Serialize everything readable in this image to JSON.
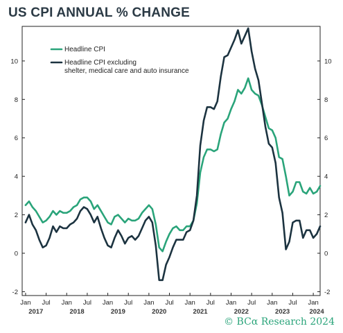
{
  "title": "US CPI ANNUAL % CHANGE",
  "copyright": "© BCα Research 2024",
  "colors": {
    "headline": "#2aa47a",
    "excluding": "#1c3340",
    "frame": "#222222"
  },
  "chart_data": {
    "type": "line",
    "title": "US CPI ANNUAL % CHANGE",
    "xlabel": "",
    "ylabel": "",
    "xlim": [
      "2016-12",
      "2024-03"
    ],
    "ylim": [
      -2.2,
      11.8
    ],
    "y_ticks": [
      -2,
      0,
      2,
      4,
      6,
      8,
      10
    ],
    "x_ticks": [
      {
        "date": "2017-01",
        "label": "Jan"
      },
      {
        "date": "2017-07",
        "label": "Jul"
      },
      {
        "date": "2018-01",
        "label": "Jan"
      },
      {
        "date": "2018-07",
        "label": "Jul"
      },
      {
        "date": "2019-01",
        "label": "Jan"
      },
      {
        "date": "2019-07",
        "label": "Jul"
      },
      {
        "date": "2020-01",
        "label": "Jan"
      },
      {
        "date": "2020-07",
        "label": "Jul"
      },
      {
        "date": "2021-01",
        "label": "Jan"
      },
      {
        "date": "2021-07",
        "label": "Jul"
      },
      {
        "date": "2022-01",
        "label": "Jan"
      },
      {
        "date": "2022-07",
        "label": "Jul"
      },
      {
        "date": "2023-01",
        "label": "Jan"
      },
      {
        "date": "2023-07",
        "label": "Jul"
      },
      {
        "date": "2024-01",
        "label": "Jan"
      }
    ],
    "year_labels": [
      {
        "date": "2017-04",
        "label": "2017"
      },
      {
        "date": "2018-04",
        "label": "2018"
      },
      {
        "date": "2019-04",
        "label": "2019"
      },
      {
        "date": "2020-04",
        "label": "2020"
      },
      {
        "date": "2021-04",
        "label": "2021"
      },
      {
        "date": "2022-04",
        "label": "2022"
      },
      {
        "date": "2023-04",
        "label": "2023"
      },
      {
        "date": "2024-02",
        "label": "2024"
      }
    ],
    "legend_position": "top-left",
    "series": [
      {
        "name": "Headline CPI",
        "color": "#2aa47a",
        "points": [
          [
            "2017-01",
            2.5
          ],
          [
            "2017-02",
            2.7
          ],
          [
            "2017-03",
            2.4
          ],
          [
            "2017-04",
            2.2
          ],
          [
            "2017-05",
            1.9
          ],
          [
            "2017-06",
            1.6
          ],
          [
            "2017-07",
            1.7
          ],
          [
            "2017-08",
            1.9
          ],
          [
            "2017-09",
            2.2
          ],
          [
            "2017-10",
            2.0
          ],
          [
            "2017-11",
            2.2
          ],
          [
            "2017-12",
            2.1
          ],
          [
            "2018-01",
            2.1
          ],
          [
            "2018-02",
            2.2
          ],
          [
            "2018-03",
            2.4
          ],
          [
            "2018-04",
            2.5
          ],
          [
            "2018-05",
            2.8
          ],
          [
            "2018-06",
            2.9
          ],
          [
            "2018-07",
            2.9
          ],
          [
            "2018-08",
            2.7
          ],
          [
            "2018-09",
            2.3
          ],
          [
            "2018-10",
            2.5
          ],
          [
            "2018-11",
            2.2
          ],
          [
            "2018-12",
            1.9
          ],
          [
            "2019-01",
            1.6
          ],
          [
            "2019-02",
            1.5
          ],
          [
            "2019-03",
            1.9
          ],
          [
            "2019-04",
            2.0
          ],
          [
            "2019-05",
            1.8
          ],
          [
            "2019-06",
            1.6
          ],
          [
            "2019-07",
            1.8
          ],
          [
            "2019-08",
            1.7
          ],
          [
            "2019-09",
            1.7
          ],
          [
            "2019-10",
            1.8
          ],
          [
            "2019-11",
            2.1
          ],
          [
            "2019-12",
            2.3
          ],
          [
            "2020-01",
            2.5
          ],
          [
            "2020-02",
            2.3
          ],
          [
            "2020-03",
            1.5
          ],
          [
            "2020-04",
            0.3
          ],
          [
            "2020-05",
            0.1
          ],
          [
            "2020-06",
            0.6
          ],
          [
            "2020-07",
            1.0
          ],
          [
            "2020-08",
            1.3
          ],
          [
            "2020-09",
            1.4
          ],
          [
            "2020-10",
            1.2
          ],
          [
            "2020-11",
            1.2
          ],
          [
            "2020-12",
            1.4
          ],
          [
            "2021-01",
            1.4
          ],
          [
            "2021-02",
            1.7
          ],
          [
            "2021-03",
            2.6
          ],
          [
            "2021-04",
            4.2
          ],
          [
            "2021-05",
            5.0
          ],
          [
            "2021-06",
            5.4
          ],
          [
            "2021-07",
            5.4
          ],
          [
            "2021-08",
            5.3
          ],
          [
            "2021-09",
            5.4
          ],
          [
            "2021-10",
            6.2
          ],
          [
            "2021-11",
            6.8
          ],
          [
            "2021-12",
            7.0
          ],
          [
            "2022-01",
            7.5
          ],
          [
            "2022-02",
            7.9
          ],
          [
            "2022-03",
            8.5
          ],
          [
            "2022-04",
            8.3
          ],
          [
            "2022-05",
            8.6
          ],
          [
            "2022-06",
            9.1
          ],
          [
            "2022-07",
            8.5
          ],
          [
            "2022-08",
            8.3
          ],
          [
            "2022-09",
            8.2
          ],
          [
            "2022-10",
            7.7
          ],
          [
            "2022-11",
            7.1
          ],
          [
            "2022-12",
            6.5
          ],
          [
            "2023-01",
            6.4
          ],
          [
            "2023-02",
            6.0
          ],
          [
            "2023-03",
            5.0
          ],
          [
            "2023-04",
            4.9
          ],
          [
            "2023-05",
            4.0
          ],
          [
            "2023-06",
            3.0
          ],
          [
            "2023-07",
            3.2
          ],
          [
            "2023-08",
            3.7
          ],
          [
            "2023-09",
            3.7
          ],
          [
            "2023-10",
            3.2
          ],
          [
            "2023-11",
            3.1
          ],
          [
            "2023-12",
            3.4
          ],
          [
            "2024-01",
            3.1
          ],
          [
            "2024-02",
            3.2
          ],
          [
            "2024-03",
            3.5
          ]
        ]
      },
      {
        "name": "Headline CPI excluding shelter, medical care and auto insurance",
        "legend_lines": [
          "Headline CPI excluding",
          "shelter, medical care and auto insurance"
        ],
        "color": "#1c3340",
        "points": [
          [
            "2017-01",
            1.6
          ],
          [
            "2017-02",
            2.0
          ],
          [
            "2017-03",
            1.5
          ],
          [
            "2017-04",
            1.2
          ],
          [
            "2017-05",
            0.7
          ],
          [
            "2017-06",
            0.3
          ],
          [
            "2017-07",
            0.4
          ],
          [
            "2017-08",
            0.8
          ],
          [
            "2017-09",
            1.4
          ],
          [
            "2017-10",
            1.1
          ],
          [
            "2017-11",
            1.4
          ],
          [
            "2017-12",
            1.3
          ],
          [
            "2018-01",
            1.3
          ],
          [
            "2018-02",
            1.5
          ],
          [
            "2018-03",
            1.6
          ],
          [
            "2018-04",
            1.8
          ],
          [
            "2018-05",
            2.2
          ],
          [
            "2018-06",
            2.4
          ],
          [
            "2018-07",
            2.3
          ],
          [
            "2018-08",
            2.0
          ],
          [
            "2018-09",
            1.6
          ],
          [
            "2018-10",
            1.9
          ],
          [
            "2018-11",
            1.3
          ],
          [
            "2018-12",
            0.8
          ],
          [
            "2019-01",
            0.4
          ],
          [
            "2019-02",
            0.3
          ],
          [
            "2019-03",
            0.8
          ],
          [
            "2019-04",
            1.2
          ],
          [
            "2019-05",
            0.9
          ],
          [
            "2019-06",
            0.5
          ],
          [
            "2019-07",
            0.8
          ],
          [
            "2019-08",
            0.9
          ],
          [
            "2019-09",
            0.7
          ],
          [
            "2019-10",
            0.9
          ],
          [
            "2019-11",
            1.3
          ],
          [
            "2019-12",
            1.7
          ],
          [
            "2020-01",
            1.9
          ],
          [
            "2020-02",
            1.6
          ],
          [
            "2020-03",
            0.4
          ],
          [
            "2020-04",
            -1.4
          ],
          [
            "2020-05",
            -1.4
          ],
          [
            "2020-06",
            -0.6
          ],
          [
            "2020-07",
            -0.2
          ],
          [
            "2020-08",
            0.3
          ],
          [
            "2020-09",
            0.7
          ],
          [
            "2020-10",
            0.7
          ],
          [
            "2020-11",
            0.7
          ],
          [
            "2020-12",
            1.1
          ],
          [
            "2021-01",
            1.2
          ],
          [
            "2021-02",
            1.7
          ],
          [
            "2021-03",
            3.0
          ],
          [
            "2021-04",
            5.6
          ],
          [
            "2021-05",
            6.9
          ],
          [
            "2021-06",
            7.6
          ],
          [
            "2021-07",
            7.6
          ],
          [
            "2021-08",
            7.5
          ],
          [
            "2021-09",
            7.9
          ],
          [
            "2021-10",
            9.2
          ],
          [
            "2021-11",
            10.2
          ],
          [
            "2021-12",
            10.3
          ],
          [
            "2022-01",
            10.7
          ],
          [
            "2022-02",
            11.1
          ],
          [
            "2022-03",
            11.6
          ],
          [
            "2022-04",
            10.9
          ],
          [
            "2022-05",
            11.3
          ],
          [
            "2022-06",
            11.7
          ],
          [
            "2022-07",
            10.5
          ],
          [
            "2022-08",
            9.6
          ],
          [
            "2022-09",
            9.0
          ],
          [
            "2022-10",
            7.8
          ],
          [
            "2022-11",
            6.6
          ],
          [
            "2022-12",
            5.7
          ],
          [
            "2023-01",
            5.5
          ],
          [
            "2023-02",
            4.7
          ],
          [
            "2023-03",
            2.9
          ],
          [
            "2023-04",
            2.1
          ],
          [
            "2023-05",
            0.2
          ],
          [
            "2023-06",
            0.6
          ],
          [
            "2023-07",
            1.6
          ],
          [
            "2023-08",
            1.7
          ],
          [
            "2023-09",
            1.7
          ],
          [
            "2023-10",
            0.8
          ],
          [
            "2023-11",
            1.2
          ],
          [
            "2023-12",
            1.2
          ],
          [
            "2024-01",
            0.8
          ],
          [
            "2024-02",
            1.0
          ],
          [
            "2024-03",
            1.4
          ]
        ]
      }
    ]
  }
}
